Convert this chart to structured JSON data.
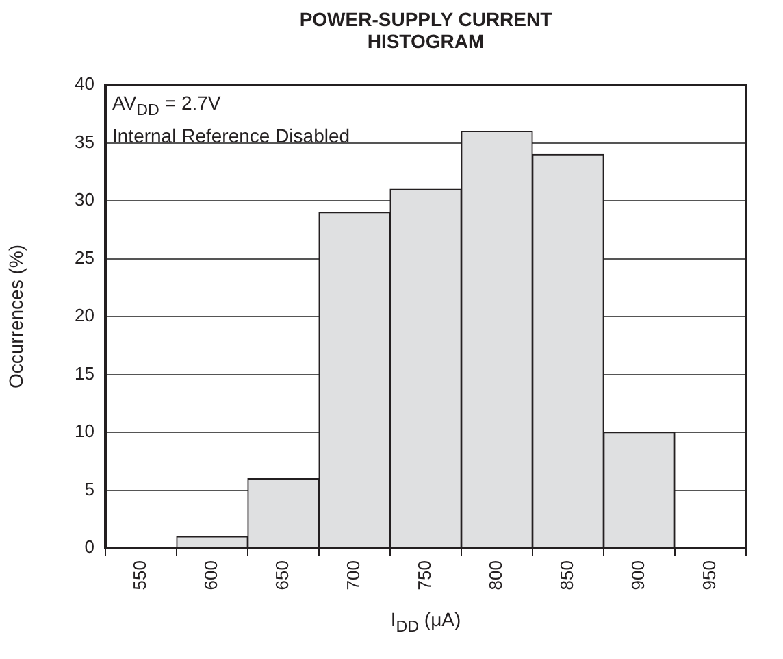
{
  "chart_data": {
    "type": "bar",
    "title": "POWER-SUPPLY CURRENT HISTOGRAM",
    "xlabel": "I$_{DD}$ (μA)",
    "ylabel": "Occurrences (%)",
    "annotations": [
      "AV$_{DD}$ = 2.7V",
      "Internal Reference Disabled"
    ],
    "categories": [
      "550",
      "600",
      "650",
      "700",
      "750",
      "800",
      "850",
      "900",
      "950"
    ],
    "values": [
      0,
      1,
      6,
      29,
      31,
      36,
      34,
      10,
      0
    ],
    "color": "#dfe0e1",
    "ylim": [
      0,
      40
    ],
    "yticks": [
      0,
      5,
      10,
      15,
      20,
      25,
      30,
      35,
      40
    ],
    "grid": "y"
  }
}
